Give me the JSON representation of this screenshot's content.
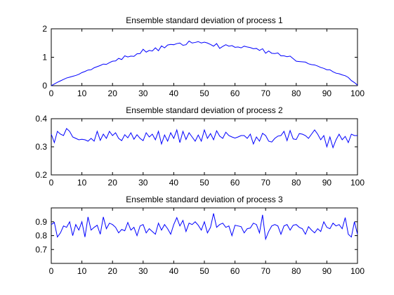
{
  "chart_data": [
    {
      "type": "line",
      "title": "Ensemble standard deviation of process 1",
      "xlim": [
        0,
        100
      ],
      "ylim": [
        0,
        2
      ],
      "xticks": [
        0,
        10,
        20,
        30,
        40,
        50,
        60,
        70,
        80,
        90,
        100
      ],
      "yticks": [
        0,
        1,
        2
      ],
      "grid": false,
      "series": [
        {
          "color": "#0000ff",
          "x": [
            0,
            1,
            2,
            3,
            4,
            5,
            6,
            7,
            8,
            9,
            10,
            11,
            12,
            13,
            14,
            15,
            16,
            17,
            18,
            19,
            20,
            21,
            22,
            23,
            24,
            25,
            26,
            27,
            28,
            29,
            30,
            31,
            32,
            33,
            34,
            35,
            36,
            37,
            38,
            39,
            40,
            41,
            42,
            43,
            44,
            45,
            46,
            47,
            48,
            49,
            50,
            51,
            52,
            53,
            54,
            55,
            56,
            57,
            58,
            59,
            60,
            61,
            62,
            63,
            64,
            65,
            66,
            67,
            68,
            69,
            70,
            71,
            72,
            73,
            74,
            75,
            76,
            77,
            78,
            79,
            80,
            81,
            82,
            83,
            84,
            85,
            86,
            87,
            88,
            89,
            90,
            91,
            92,
            93,
            94,
            95,
            96,
            97,
            98,
            99,
            100
          ],
          "values": [
            0.0,
            0.06,
            0.12,
            0.17,
            0.22,
            0.27,
            0.3,
            0.33,
            0.36,
            0.4,
            0.46,
            0.5,
            0.55,
            0.56,
            0.63,
            0.67,
            0.71,
            0.76,
            0.75,
            0.81,
            0.86,
            0.87,
            0.96,
            0.92,
            1.05,
            1.01,
            1.04,
            1.03,
            1.12,
            1.13,
            1.28,
            1.18,
            1.24,
            1.22,
            1.33,
            1.23,
            1.4,
            1.33,
            1.43,
            1.45,
            1.44,
            1.48,
            1.5,
            1.42,
            1.44,
            1.57,
            1.5,
            1.52,
            1.55,
            1.5,
            1.53,
            1.5,
            1.45,
            1.39,
            1.48,
            1.31,
            1.38,
            1.44,
            1.39,
            1.41,
            1.35,
            1.36,
            1.33,
            1.39,
            1.36,
            1.34,
            1.3,
            1.31,
            1.24,
            1.3,
            1.14,
            1.22,
            1.14,
            1.13,
            1.15,
            1.05,
            1.05,
            1.02,
            1.04,
            0.95,
            0.86,
            0.85,
            0.84,
            0.83,
            0.77,
            0.74,
            0.73,
            0.69,
            0.64,
            0.61,
            0.56,
            0.56,
            0.49,
            0.44,
            0.42,
            0.38,
            0.35,
            0.29,
            0.18,
            0.11,
            0.02
          ]
        }
      ]
    },
    {
      "type": "line",
      "title": "Ensemble standard deviation of process 2",
      "xlim": [
        0,
        100
      ],
      "ylim": [
        0.2,
        0.4
      ],
      "xticks": [
        0,
        10,
        20,
        30,
        40,
        50,
        60,
        70,
        80,
        90,
        100
      ],
      "yticks": [
        0.2,
        0.3,
        0.4
      ],
      "grid": false,
      "series": [
        {
          "color": "#0000ff",
          "x": [
            0,
            1,
            2,
            3,
            4,
            5,
            6,
            7,
            8,
            9,
            10,
            11,
            12,
            13,
            14,
            15,
            16,
            17,
            18,
            19,
            20,
            21,
            22,
            23,
            24,
            25,
            26,
            27,
            28,
            29,
            30,
            31,
            32,
            33,
            34,
            35,
            36,
            37,
            38,
            39,
            40,
            41,
            42,
            43,
            44,
            45,
            46,
            47,
            48,
            49,
            50,
            51,
            52,
            53,
            54,
            55,
            56,
            57,
            58,
            59,
            60,
            61,
            62,
            63,
            64,
            65,
            66,
            67,
            68,
            69,
            70,
            71,
            72,
            73,
            74,
            75,
            76,
            77,
            78,
            79,
            80,
            81,
            82,
            83,
            84,
            85,
            86,
            87,
            88,
            89,
            90,
            91,
            92,
            93,
            94,
            95,
            96,
            97,
            98,
            99,
            100
          ],
          "values": [
            0.345,
            0.315,
            0.355,
            0.345,
            0.34,
            0.365,
            0.355,
            0.335,
            0.33,
            0.325,
            0.327,
            0.325,
            0.32,
            0.33,
            0.32,
            0.355,
            0.323,
            0.345,
            0.33,
            0.355,
            0.34,
            0.35,
            0.33,
            0.322,
            0.343,
            0.332,
            0.35,
            0.327,
            0.343,
            0.33,
            0.322,
            0.35,
            0.335,
            0.345,
            0.325,
            0.355,
            0.31,
            0.342,
            0.32,
            0.35,
            0.33,
            0.36,
            0.315,
            0.355,
            0.326,
            0.35,
            0.335,
            0.32,
            0.342,
            0.32,
            0.36,
            0.33,
            0.347,
            0.325,
            0.357,
            0.338,
            0.33,
            0.352,
            0.34,
            0.335,
            0.331,
            0.335,
            0.34,
            0.34,
            0.33,
            0.345,
            0.31,
            0.335,
            0.32,
            0.348,
            0.34,
            0.32,
            0.317,
            0.33,
            0.338,
            0.34,
            0.355,
            0.322,
            0.358,
            0.328,
            0.326,
            0.347,
            0.345,
            0.34,
            0.33,
            0.345,
            0.36,
            0.345,
            0.325,
            0.34,
            0.3,
            0.335,
            0.297,
            0.325,
            0.345,
            0.325,
            0.337,
            0.315,
            0.345,
            0.34,
            0.34
          ]
        }
      ]
    },
    {
      "type": "line",
      "title": "Ensemble standard deviation of process 3",
      "xlim": [
        0,
        100
      ],
      "ylim": [
        0.6,
        1.0
      ],
      "xticks": [
        0,
        10,
        20,
        30,
        40,
        50,
        60,
        70,
        80,
        90,
        100
      ],
      "yticks": [
        0.7,
        0.8,
        0.9
      ],
      "grid": false,
      "series": [
        {
          "color": "#0000ff",
          "x": [
            0,
            1,
            2,
            3,
            4,
            5,
            6,
            7,
            8,
            9,
            10,
            11,
            12,
            13,
            14,
            15,
            16,
            17,
            18,
            19,
            20,
            21,
            22,
            23,
            24,
            25,
            26,
            27,
            28,
            29,
            30,
            31,
            32,
            33,
            34,
            35,
            36,
            37,
            38,
            39,
            40,
            41,
            42,
            43,
            44,
            45,
            46,
            47,
            48,
            49,
            50,
            51,
            52,
            53,
            54,
            55,
            56,
            57,
            58,
            59,
            60,
            61,
            62,
            63,
            64,
            65,
            66,
            67,
            68,
            69,
            70,
            71,
            72,
            73,
            74,
            75,
            76,
            77,
            78,
            79,
            80,
            81,
            82,
            83,
            84,
            85,
            86,
            87,
            88,
            89,
            90,
            91,
            92,
            93,
            94,
            95,
            96,
            97,
            98,
            99,
            100
          ],
          "values": [
            0.88,
            0.895,
            0.79,
            0.82,
            0.87,
            0.86,
            0.9,
            0.8,
            0.88,
            0.84,
            0.9,
            0.79,
            0.935,
            0.84,
            0.86,
            0.875,
            0.81,
            0.935,
            0.85,
            0.89,
            0.88,
            0.86,
            0.82,
            0.845,
            0.835,
            0.895,
            0.84,
            0.86,
            0.8,
            0.87,
            0.88,
            0.82,
            0.85,
            0.83,
            0.81,
            0.89,
            0.84,
            0.88,
            0.85,
            0.81,
            0.88,
            0.93,
            0.87,
            0.91,
            0.83,
            0.89,
            0.88,
            0.9,
            0.875,
            0.84,
            0.9,
            0.82,
            0.86,
            0.96,
            0.86,
            0.88,
            0.89,
            0.86,
            0.87,
            0.8,
            0.875,
            0.87,
            0.865,
            0.82,
            0.85,
            0.855,
            0.89,
            0.88,
            0.82,
            0.95,
            0.775,
            0.83,
            0.87,
            0.88,
            0.87,
            0.81,
            0.87,
            0.88,
            0.84,
            0.875,
            0.88,
            0.86,
            0.85,
            0.81,
            0.865,
            0.84,
            0.82,
            0.85,
            0.83,
            0.9,
            0.86,
            0.85,
            0.89,
            0.87,
            0.88,
            0.85,
            0.93,
            0.81,
            0.79,
            0.9,
            0.81
          ]
        }
      ]
    }
  ]
}
